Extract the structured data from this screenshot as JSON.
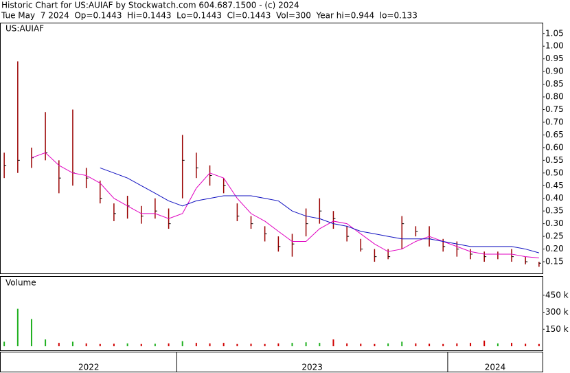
{
  "header": {
    "title": "Historic Chart for US:AUIAF by Stockwatch.com 604.687.1500 - (c) 2024",
    "quote": "Tue May  7 2024  Op=0.1443  Hi=0.1443  Lo=0.1443  Cl=0.1443  Vol=300  Year hi=0.944  lo=0.133"
  },
  "chart_data": [
    {
      "type": "hlc",
      "label": "US:AUIAF",
      "bar_color": "#990000",
      "x": [
        2022.363,
        2022.413,
        2022.464,
        2022.515,
        2022.565,
        2022.616,
        2022.666,
        2022.717,
        2022.768,
        2022.818,
        2022.869,
        2022.92,
        2022.97,
        2023.021,
        2023.072,
        2023.122,
        2023.173,
        2023.223,
        2023.274,
        2023.325,
        2023.375,
        2023.426,
        2023.477,
        2023.527,
        2023.578,
        2023.628,
        2023.679,
        2023.73,
        2023.78,
        2023.831,
        2023.882,
        2023.932,
        2023.983,
        2024.034,
        2024.084,
        2024.135,
        2024.185,
        2024.236,
        2024.287,
        2024.337
      ],
      "high": [
        0.58,
        0.94,
        0.6,
        0.74,
        0.55,
        0.75,
        0.52,
        0.47,
        0.38,
        0.41,
        0.37,
        0.4,
        0.36,
        0.65,
        0.58,
        0.53,
        0.48,
        0.38,
        0.33,
        0.29,
        0.25,
        0.26,
        0.36,
        0.4,
        0.35,
        0.29,
        0.24,
        0.2,
        0.2,
        0.33,
        0.29,
        0.29,
        0.24,
        0.23,
        0.2,
        0.19,
        0.19,
        0.2,
        0.17,
        0.15
      ],
      "low": [
        0.48,
        0.5,
        0.52,
        0.55,
        0.42,
        0.45,
        0.44,
        0.38,
        0.31,
        0.32,
        0.3,
        0.32,
        0.28,
        0.4,
        0.48,
        0.45,
        0.42,
        0.31,
        0.28,
        0.23,
        0.19,
        0.17,
        0.25,
        0.3,
        0.28,
        0.23,
        0.19,
        0.15,
        0.16,
        0.2,
        0.25,
        0.21,
        0.19,
        0.17,
        0.16,
        0.15,
        0.16,
        0.15,
        0.14,
        0.13
      ],
      "close": [
        0.53,
        0.55,
        0.56,
        0.58,
        0.48,
        0.5,
        0.48,
        0.4,
        0.34,
        0.37,
        0.33,
        0.35,
        0.3,
        0.55,
        0.52,
        0.49,
        0.45,
        0.33,
        0.3,
        0.26,
        0.21,
        0.22,
        0.3,
        0.35,
        0.32,
        0.25,
        0.2,
        0.17,
        0.17,
        0.3,
        0.27,
        0.24,
        0.21,
        0.2,
        0.18,
        0.17,
        0.18,
        0.17,
        0.15,
        0.144
      ],
      "series": [
        {
          "color": "#e000c0",
          "values": [
            null,
            null,
            0.56,
            0.58,
            0.53,
            0.5,
            0.49,
            0.46,
            0.4,
            0.37,
            0.34,
            0.34,
            0.32,
            0.34,
            0.44,
            0.5,
            0.48,
            0.4,
            0.34,
            0.31,
            0.27,
            0.23,
            0.23,
            0.28,
            0.31,
            0.3,
            0.26,
            0.22,
            0.19,
            0.2,
            0.23,
            0.25,
            0.23,
            0.21,
            0.19,
            0.18,
            0.18,
            0.18,
            0.17,
            0.165
          ]
        },
        {
          "color": "#1010c0",
          "values": [
            null,
            null,
            null,
            null,
            null,
            null,
            null,
            0.52,
            0.5,
            0.48,
            0.45,
            0.42,
            0.39,
            0.37,
            0.39,
            0.4,
            0.41,
            0.41,
            0.41,
            0.4,
            0.39,
            0.35,
            0.33,
            0.32,
            0.3,
            0.29,
            0.27,
            0.26,
            0.25,
            0.24,
            0.24,
            0.24,
            0.23,
            0.22,
            0.21,
            0.21,
            0.21,
            0.21,
            0.2,
            0.185
          ]
        }
      ],
      "xlim": [
        2022.35,
        2024.35
      ],
      "ylim": [
        0.104,
        1.09
      ],
      "yticks": [
        0.15,
        {
          "value": 0.2,
          "label": "0.20"
        },
        0.25,
        {
          "value": 0.3,
          "label": "0.30"
        },
        0.35,
        {
          "value": 0.4,
          "label": "0.40"
        },
        0.45,
        {
          "value": 0.5,
          "label": "0.50"
        },
        0.55,
        {
          "value": 0.6,
          "label": "0.60"
        },
        0.65,
        {
          "value": 0.7,
          "label": "0.70"
        },
        0.75,
        {
          "value": 0.8,
          "label": "0.80"
        },
        0.85,
        {
          "value": 0.9,
          "label": "0.90"
        },
        0.95,
        {
          "value": 1,
          "label": "1.00"
        },
        1.05
      ]
    },
    {
      "type": "volume",
      "label": "Volume",
      "up_color": "#20b020",
      "down_color": "#d00000",
      "values": [
        40000,
        330000,
        240000,
        60000,
        30000,
        40000,
        25000,
        20000,
        22000,
        25000,
        20000,
        22000,
        25000,
        45000,
        30000,
        25000,
        30000,
        20000,
        22000,
        20000,
        25000,
        30000,
        35000,
        30000,
        60000,
        25000,
        22000,
        20000,
        25000,
        40000,
        25000,
        22000,
        20000,
        25000,
        30000,
        50000,
        25000,
        30000,
        22000,
        20000
      ],
      "ylim": [
        -36000,
        612000
      ],
      "yticks": [
        {
          "value": 150000,
          "label": "150 k"
        },
        {
          "value": 300000,
          "label": "300 k"
        },
        {
          "value": 450000,
          "label": "450 k"
        }
      ]
    },
    {
      "type": "periods",
      "periods": [
        {
          "label": "2022",
          "start": 2022.35,
          "end": 2023
        },
        {
          "label": "2023",
          "start": 2023,
          "end": 2024
        },
        {
          "label": "2024",
          "start": 2024,
          "end": 2024.35
        }
      ]
    }
  ]
}
